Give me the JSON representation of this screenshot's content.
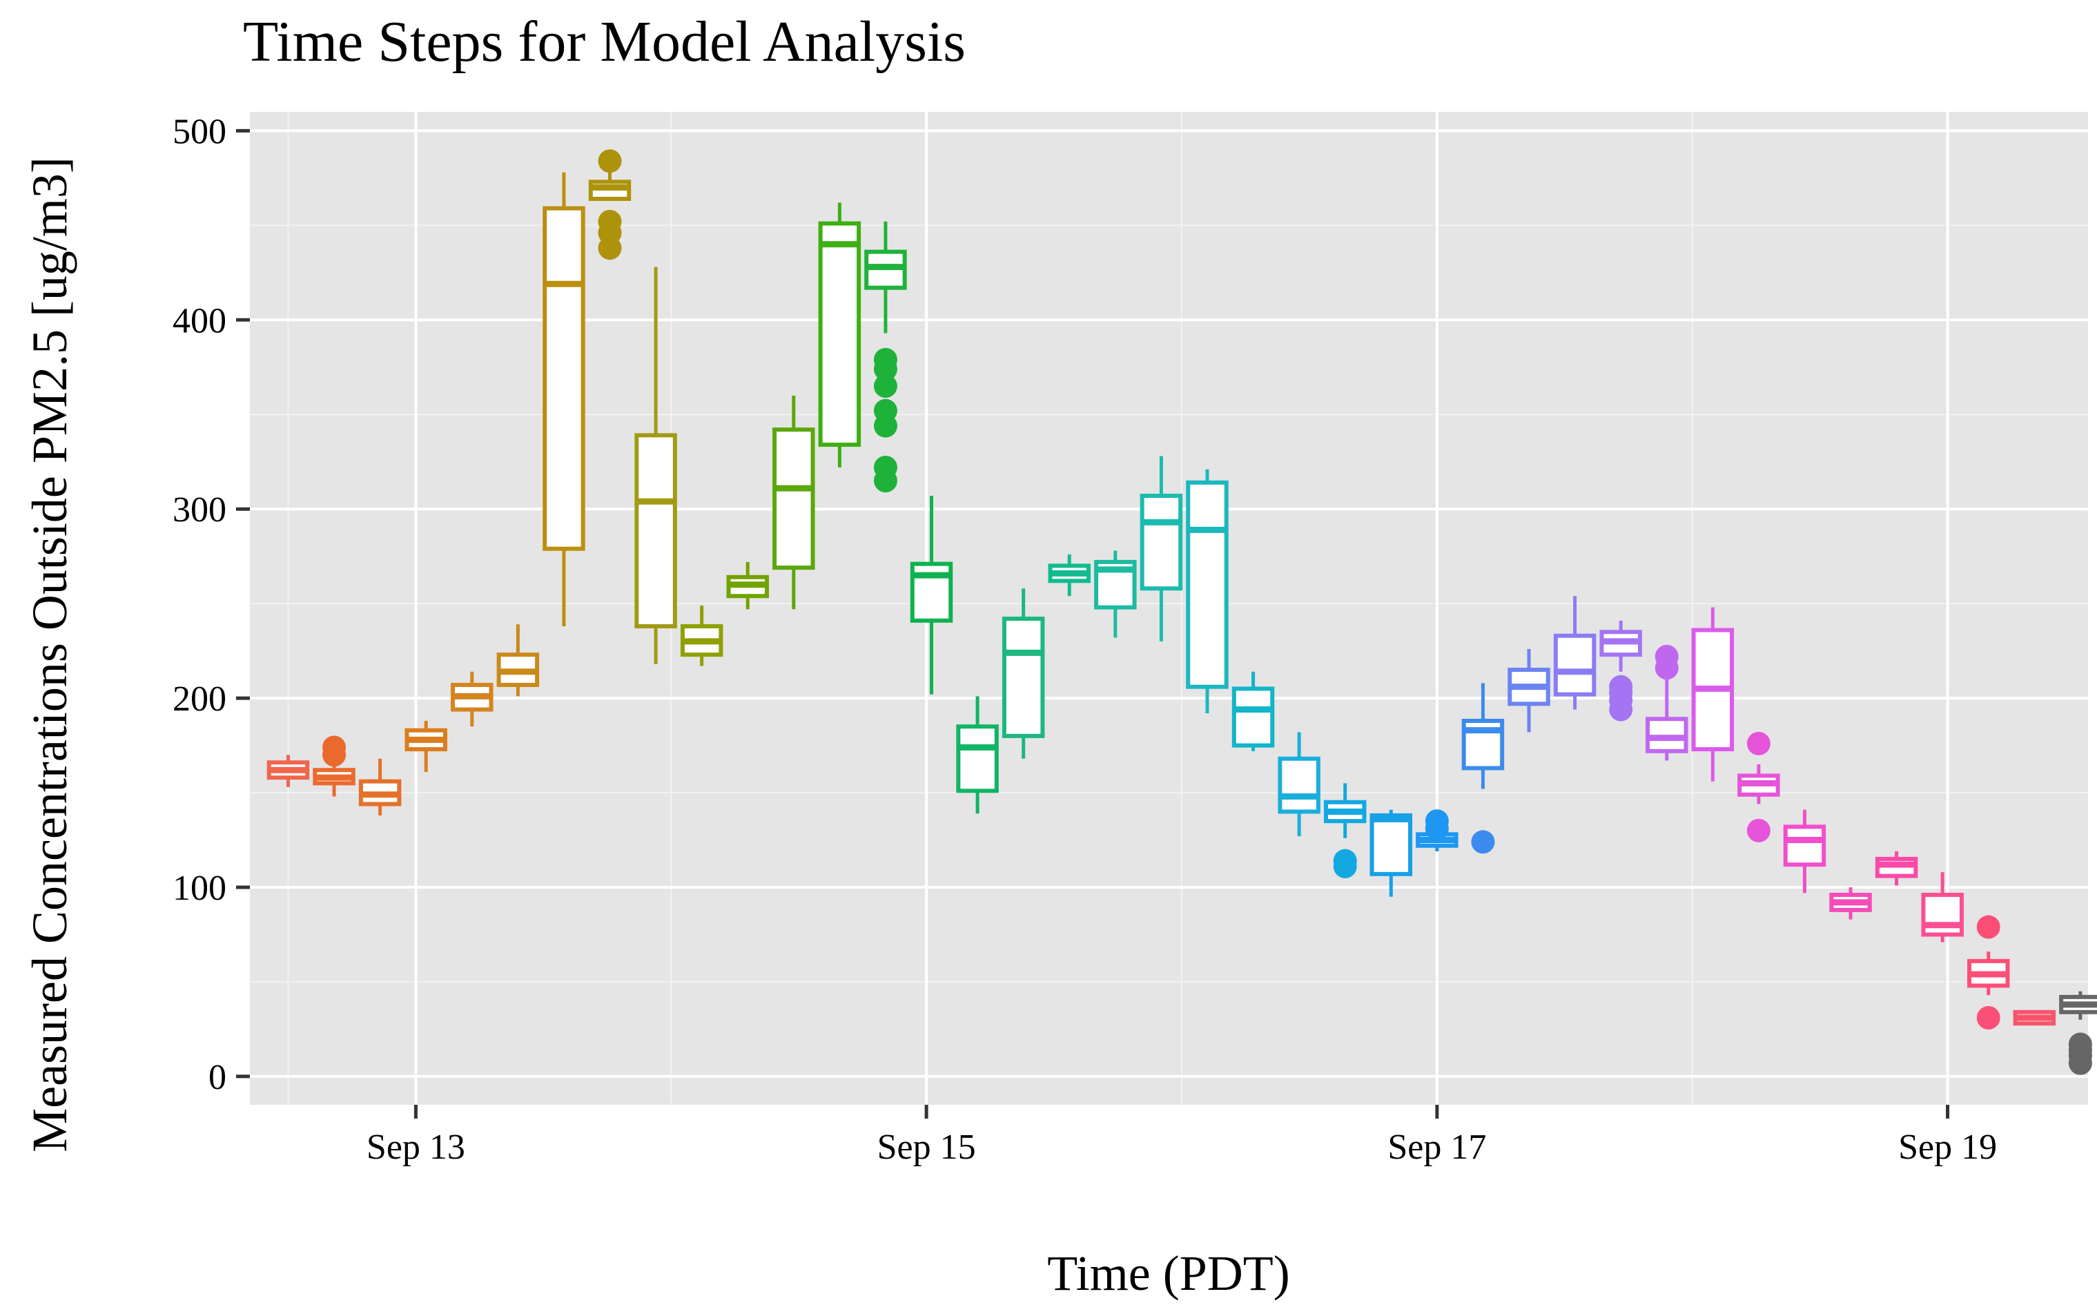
{
  "chart_data": {
    "type": "box",
    "title": "Time Steps for Model Analysis",
    "xlabel": "Time (PDT)",
    "ylabel": "Measured Concentrations Outside PM2.5 [ug/m3]",
    "ylim": [
      -15,
      510
    ],
    "xlim": [
      12.35,
      19.55
    ],
    "y_ticks": [
      0,
      100,
      200,
      300,
      400,
      500
    ],
    "x_ticks": [
      {
        "value": 13,
        "label": "Sep 13"
      },
      {
        "value": 15,
        "label": "Sep 15"
      },
      {
        "value": 17,
        "label": "Sep 17"
      },
      {
        "value": 19,
        "label": "Sep 19"
      }
    ],
    "x_minor": [
      12.5,
      14,
      16,
      18
    ],
    "grid": true,
    "box_width_days": 0.15,
    "boxes": [
      {
        "x": 12.5,
        "q1": 158,
        "med": 162,
        "q3": 166,
        "lo": 153,
        "hi": 170,
        "out": [],
        "color": "#F0664D"
      },
      {
        "x": 12.68,
        "q1": 155,
        "med": 158,
        "q3": 162,
        "lo": 148,
        "hi": 168,
        "out": [
          170,
          174
        ],
        "color": "#EA6A2E"
      },
      {
        "x": 12.86,
        "q1": 144,
        "med": 149,
        "q3": 156,
        "lo": 138,
        "hi": 168,
        "out": [],
        "color": "#E4712A"
      },
      {
        "x": 13.04,
        "q1": 173,
        "med": 178,
        "q3": 183,
        "lo": 161,
        "hi": 188,
        "out": [],
        "color": "#DB7D1C"
      },
      {
        "x": 13.22,
        "q1": 194,
        "med": 201,
        "q3": 207,
        "lo": 185,
        "hi": 214,
        "out": [],
        "color": "#D48420"
      },
      {
        "x": 13.4,
        "q1": 207,
        "med": 214,
        "q3": 223,
        "lo": 201,
        "hi": 239,
        "out": [],
        "color": "#C98A18"
      },
      {
        "x": 13.58,
        "q1": 279,
        "med": 419,
        "q3": 459,
        "lo": 238,
        "hi": 478,
        "out": [],
        "color": "#BB8F0F"
      },
      {
        "x": 13.76,
        "q1": 464,
        "med": 470,
        "q3": 473,
        "lo": 464,
        "hi": 478,
        "out": [
          438,
          446,
          452,
          484
        ],
        "color": "#AD930C"
      },
      {
        "x": 13.94,
        "q1": 238,
        "med": 304,
        "q3": 339,
        "lo": 218,
        "hi": 428,
        "out": [],
        "color": "#A29A14"
      },
      {
        "x": 14.12,
        "q1": 223,
        "med": 230,
        "q3": 238,
        "lo": 217,
        "hi": 249,
        "out": [],
        "color": "#8FA000"
      },
      {
        "x": 14.3,
        "q1": 254,
        "med": 260,
        "q3": 264,
        "lo": 247,
        "hi": 272,
        "out": [],
        "color": "#71A300"
      },
      {
        "x": 14.48,
        "q1": 269,
        "med": 311,
        "q3": 342,
        "lo": 247,
        "hi": 360,
        "out": [],
        "color": "#5BA70C"
      },
      {
        "x": 14.66,
        "q1": 334,
        "med": 440,
        "q3": 451,
        "lo": 322,
        "hi": 462,
        "out": [],
        "color": "#3DAF12"
      },
      {
        "x": 14.84,
        "q1": 417,
        "med": 428,
        "q3": 436,
        "lo": 393,
        "hi": 452,
        "out": [
          315,
          322,
          344,
          352,
          365,
          374,
          379
        ],
        "color": "#1FB23A"
      },
      {
        "x": 15.02,
        "q1": 241,
        "med": 265,
        "q3": 271,
        "lo": 202,
        "hi": 307,
        "out": [],
        "color": "#0FB24E"
      },
      {
        "x": 15.2,
        "q1": 151,
        "med": 174,
        "q3": 185,
        "lo": 139,
        "hi": 201,
        "out": [],
        "color": "#11B565"
      },
      {
        "x": 15.38,
        "q1": 180,
        "med": 224,
        "q3": 242,
        "lo": 168,
        "hi": 258,
        "out": [],
        "color": "#1DB780"
      },
      {
        "x": 15.56,
        "q1": 262,
        "med": 266,
        "q3": 270,
        "lo": 254,
        "hi": 276,
        "out": [],
        "color": "#12BB8F"
      },
      {
        "x": 15.74,
        "q1": 248,
        "med": 268,
        "q3": 272,
        "lo": 232,
        "hi": 278,
        "out": [],
        "color": "#1EBBA0"
      },
      {
        "x": 15.92,
        "q1": 258,
        "med": 293,
        "q3": 307,
        "lo": 230,
        "hi": 328,
        "out": [],
        "color": "#1BBCAE"
      },
      {
        "x": 16.1,
        "q1": 206,
        "med": 289,
        "q3": 314,
        "lo": 192,
        "hi": 321,
        "out": [],
        "color": "#1BB8BE"
      },
      {
        "x": 16.28,
        "q1": 175,
        "med": 194,
        "q3": 205,
        "lo": 172,
        "hi": 214,
        "out": [],
        "color": "#12B5C9"
      },
      {
        "x": 16.46,
        "q1": 140,
        "med": 148,
        "q3": 168,
        "lo": 127,
        "hi": 182,
        "out": [],
        "color": "#1CAEDB"
      },
      {
        "x": 16.64,
        "q1": 135,
        "med": 140,
        "q3": 145,
        "lo": 126,
        "hi": 155,
        "out": [
          111,
          114
        ],
        "color": "#13A8E0"
      },
      {
        "x": 16.82,
        "q1": 107,
        "med": 136,
        "q3": 138,
        "lo": 95,
        "hi": 141,
        "out": [],
        "color": "#17A0E6"
      },
      {
        "x": 17.0,
        "q1": 122,
        "med": 125,
        "q3": 128,
        "lo": 119,
        "hi": 130,
        "out": [
          131,
          135
        ],
        "color": "#1D97F1"
      },
      {
        "x": 17.18,
        "q1": 163,
        "med": 183,
        "q3": 188,
        "lo": 152,
        "hi": 208,
        "out": [
          124
        ],
        "color": "#3C8BEE"
      },
      {
        "x": 17.36,
        "q1": 197,
        "med": 206,
        "q3": 215,
        "lo": 182,
        "hi": 226,
        "out": [],
        "color": "#6C84F2"
      },
      {
        "x": 17.54,
        "q1": 202,
        "med": 214,
        "q3": 233,
        "lo": 194,
        "hi": 254,
        "out": [],
        "color": "#8A7CF4"
      },
      {
        "x": 17.72,
        "q1": 223,
        "med": 230,
        "q3": 235,
        "lo": 214,
        "hi": 241,
        "out": [
          194,
          199,
          203,
          206
        ],
        "color": "#A474F3"
      },
      {
        "x": 17.9,
        "q1": 172,
        "med": 179,
        "q3": 189,
        "lo": 167,
        "hi": 212,
        "out": [
          216,
          222
        ],
        "color": "#C067F0"
      },
      {
        "x": 18.08,
        "q1": 173,
        "med": 205,
        "q3": 236,
        "lo": 156,
        "hi": 248,
        "out": [],
        "color": "#DA5BEB"
      },
      {
        "x": 18.26,
        "q1": 149,
        "med": 155,
        "q3": 159,
        "lo": 144,
        "hi": 165,
        "out": [
          130,
          176
        ],
        "color": "#E654D9"
      },
      {
        "x": 18.44,
        "q1": 112,
        "med": 125,
        "q3": 132,
        "lo": 97,
        "hi": 141,
        "out": [],
        "color": "#F14ECD"
      },
      {
        "x": 18.62,
        "q1": 88,
        "med": 92,
        "q3": 96,
        "lo": 83,
        "hi": 100,
        "out": [],
        "color": "#F64CB9"
      },
      {
        "x": 18.8,
        "q1": 106,
        "med": 112,
        "q3": 115,
        "lo": 101,
        "hi": 119,
        "out": [],
        "color": "#F94AA8"
      },
      {
        "x": 18.98,
        "q1": 75,
        "med": 80,
        "q3": 96,
        "lo": 71,
        "hi": 108,
        "out": [],
        "color": "#FB4F93"
      },
      {
        "x": 19.16,
        "q1": 48,
        "med": 54,
        "q3": 61,
        "lo": 43,
        "hi": 66,
        "out": [
          31,
          79
        ],
        "color": "#FC4F78"
      },
      {
        "x": 19.34,
        "q1": 28,
        "med": 31,
        "q3": 34,
        "lo": 27,
        "hi": 35,
        "out": [],
        "color": "#F6546B"
      },
      {
        "x": 19.52,
        "q1": 34,
        "med": 38,
        "q3": 42,
        "lo": 30,
        "hi": 45,
        "out": [
          7,
          11,
          14,
          17
        ],
        "color": "#666666"
      }
    ]
  }
}
